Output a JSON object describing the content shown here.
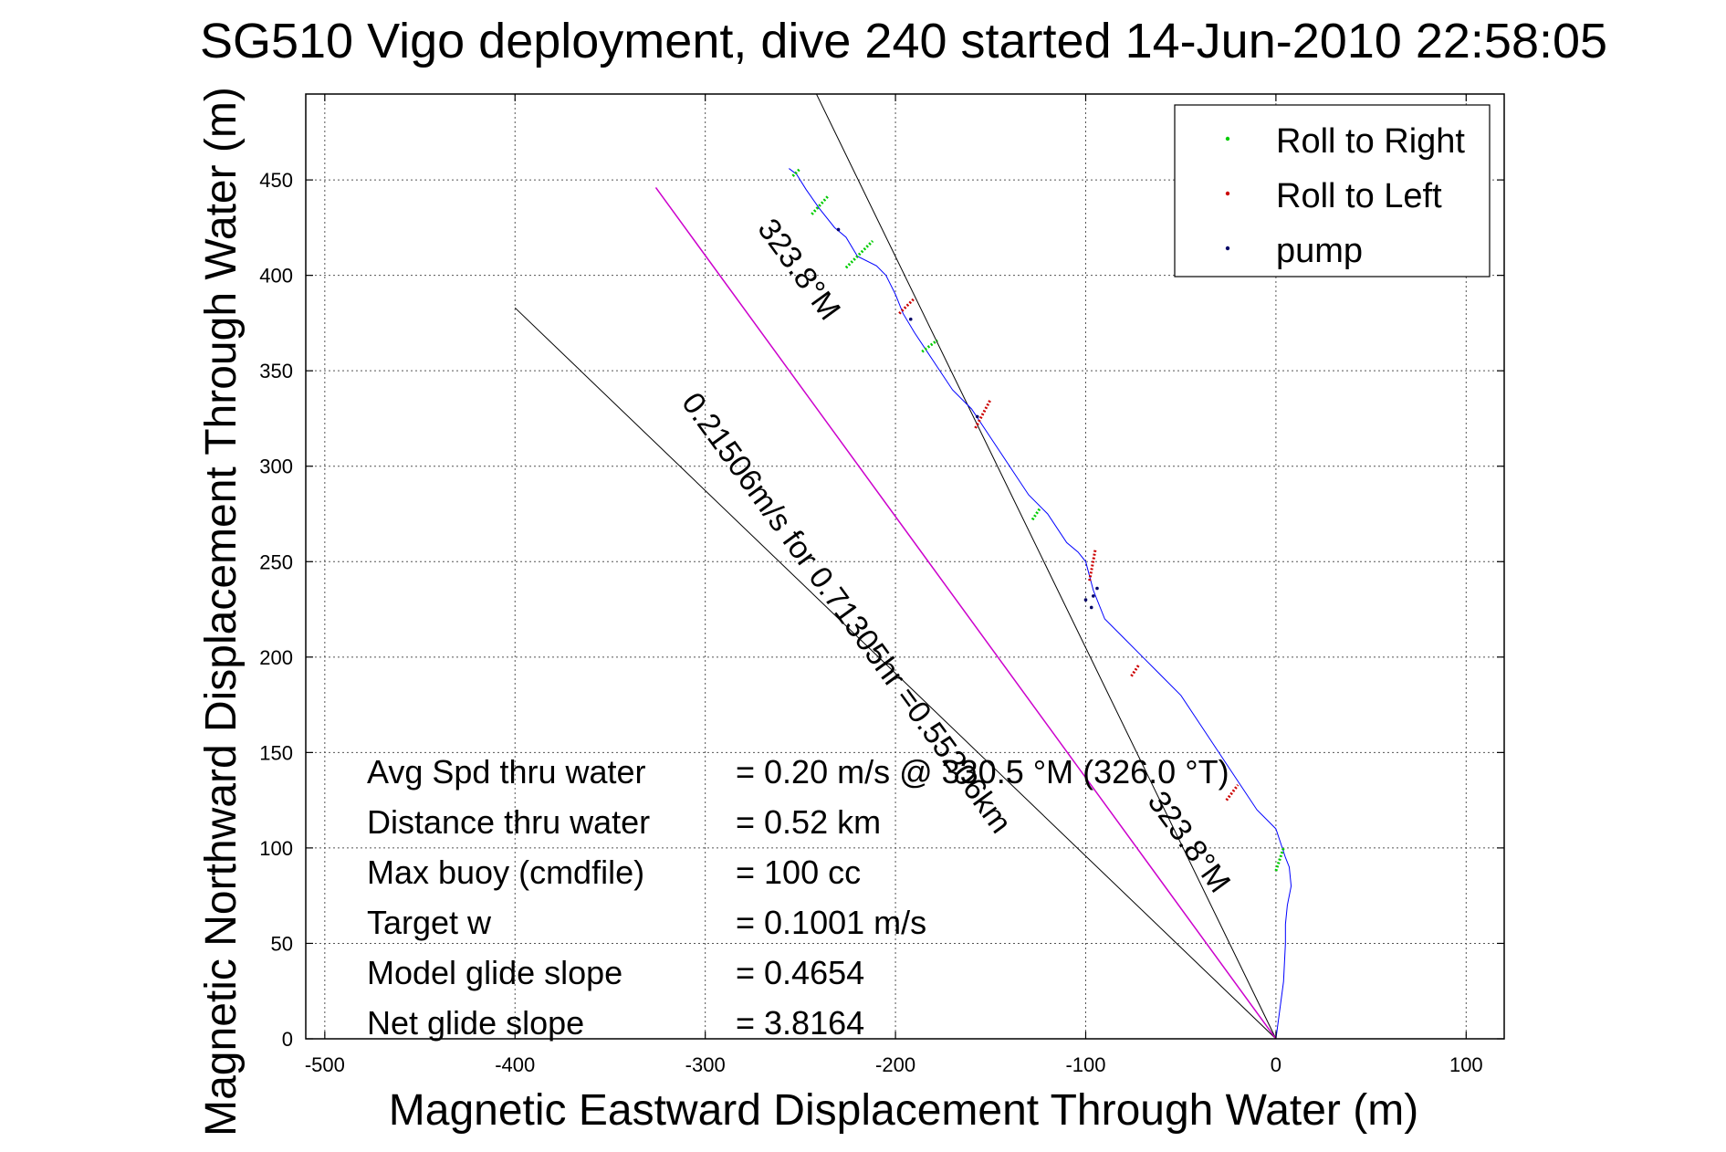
{
  "chart_data": {
    "type": "line",
    "title": "SG510 Vigo deployment, dive 240 started 14-Jun-2010 22:58:05",
    "xlabel": "Magnetic Eastward Displacement Through Water (m)",
    "ylabel": "Magnetic Northward Displacement Through Water (m)",
    "xlim": [
      -510,
      120
    ],
    "ylim": [
      0,
      495
    ],
    "xticks": [
      -500,
      -400,
      -300,
      -200,
      -100,
      0,
      100
    ],
    "yticks": [
      0,
      50,
      100,
      150,
      200,
      250,
      300,
      350,
      400,
      450
    ],
    "grid": true,
    "legend_position": "top-right",
    "legend": [
      {
        "label": "Roll to Right",
        "color": "#00cc00"
      },
      {
        "label": "Roll to Left",
        "color": "#cc0000"
      },
      {
        "label": "pump",
        "color": "#000066"
      }
    ],
    "track": {
      "color": "#0000ff",
      "x": [
        0,
        2,
        4,
        5,
        5,
        6,
        8,
        7,
        5,
        0,
        -10,
        -20,
        -30,
        -40,
        -50,
        -60,
        -70,
        -80,
        -90,
        -96,
        -100,
        -104,
        -110,
        -120,
        -130,
        -140,
        -150,
        -160,
        -170,
        -180,
        -190,
        -196,
        -200,
        -205,
        -210,
        -220,
        -226,
        -232,
        -240,
        -247,
        -252,
        -256
      ],
      "y": [
        0,
        15,
        30,
        50,
        60,
        70,
        80,
        90,
        95,
        110,
        120,
        135,
        150,
        165,
        180,
        190,
        200,
        210,
        220,
        235,
        250,
        255,
        260,
        275,
        285,
        300,
        315,
        330,
        340,
        355,
        370,
        380,
        390,
        400,
        405,
        410,
        420,
        425,
        435,
        445,
        453,
        456
      ]
    },
    "roll_right_segments": [
      {
        "x": [
          0,
          4
        ],
        "y": [
          88,
          100
        ]
      },
      {
        "x": [
          -128,
          -124
        ],
        "y": [
          272,
          278
        ]
      },
      {
        "x": [
          -186,
          -178
        ],
        "y": [
          360,
          366
        ]
      },
      {
        "x": [
          -226,
          -212
        ],
        "y": [
          404,
          418
        ]
      },
      {
        "x": [
          -244,
          -235
        ],
        "y": [
          432,
          442
        ]
      },
      {
        "x": [
          -254,
          -250
        ],
        "y": [
          452,
          456
        ]
      }
    ],
    "roll_left_segments": [
      {
        "x": [
          -26,
          -20
        ],
        "y": [
          125,
          133
        ]
      },
      {
        "x": [
          -76,
          -72
        ],
        "y": [
          190,
          196
        ]
      },
      {
        "x": [
          -98,
          -95
        ],
        "y": [
          240,
          256
        ]
      },
      {
        "x": [
          -158,
          -150
        ],
        "y": [
          320,
          335
        ]
      },
      {
        "x": [
          -198,
          -190
        ],
        "y": [
          380,
          388
        ]
      }
    ],
    "pump_points": {
      "x": [
        -100,
        -97,
        -96,
        -94,
        -230,
        -157,
        -192
      ],
      "y": [
        230,
        226,
        232,
        236,
        424,
        326,
        377
      ]
    },
    "heading_line": {
      "color": "#cc00cc",
      "x": [
        0,
        -326
      ],
      "y": [
        0,
        446
      ]
    },
    "reference_lines": [
      {
        "x": [
          0,
          -244
        ],
        "y": [
          0,
          500
        ]
      },
      {
        "x": [
          0,
          -400
        ],
        "y": [
          0,
          383
        ]
      }
    ],
    "rotated_labels": [
      {
        "text": "323.8°M",
        "x": -255,
        "y": 400
      },
      {
        "text": "0.21506m/s for 0.71305hr =0.55206km",
        "x": -230,
        "y": 220
      },
      {
        "text": "323.8°M",
        "x": -50,
        "y": 100
      }
    ],
    "stats": [
      {
        "label": "Avg Spd thru water",
        "value": "=  0.20 m/s @ 330.5 °M (326.0 °T)"
      },
      {
        "label": "Distance thru water",
        "value": "=  0.52 km"
      },
      {
        "label": "Max buoy (cmdfile)",
        "value": "= 100 cc"
      },
      {
        "label": "Target w",
        "value": "= 0.1001 m/s"
      },
      {
        "label": "Model glide slope",
        "value": "= 0.4654"
      },
      {
        "label": "Net glide slope",
        "value": "= 3.8164"
      }
    ]
  }
}
